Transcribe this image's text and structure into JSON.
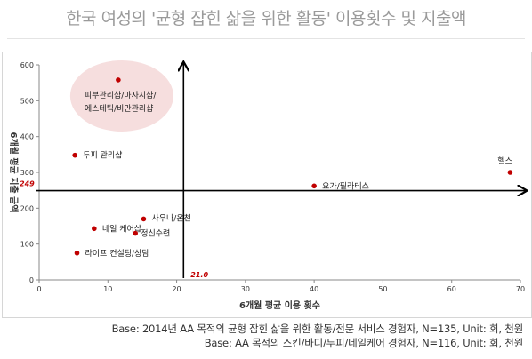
{
  "title": "한국 여성의 '균형 잡힌 삶을 위한 활동' 이용횟수 및 지출액",
  "notes": [
    "Base: 2014년 AA 목적의 균형 잡힌 삶을 위한 활동/전문 서비스 경험자, N=135, Unit: 회, 천원",
    "Base: AA 목적의 스킨/바디/두피/네일케어 경험자, N=116, Unit: 회, 천원"
  ],
  "chart_data": {
    "type": "scatter",
    "xlabel": "6개월 평균 이용 횟수",
    "ylabel": "6개월 평균 지출 금액",
    "xlim": [
      0,
      70
    ],
    "ylim": [
      0,
      600
    ],
    "xticks": [
      0,
      10,
      20,
      30,
      40,
      50,
      60,
      70
    ],
    "yticks": [
      0,
      100,
      200,
      300,
      400,
      500,
      600
    ],
    "grid": false,
    "reference_lines": {
      "x": 21.0,
      "x_label": "21.0",
      "y": 249,
      "y_label": "249"
    },
    "points": [
      {
        "label": "피부관리샵/마사지샵/\n에스테틱/비만관리샵",
        "x": 11.5,
        "y": 558,
        "highlighted": true
      },
      {
        "label": "두피 관리샵",
        "x": 5.2,
        "y": 348
      },
      {
        "label": "사우나/온천",
        "x": 15.2,
        "y": 170
      },
      {
        "label": "네일 케어샵",
        "x": 8.0,
        "y": 143
      },
      {
        "label": "정신수련",
        "x": 14.0,
        "y": 130
      },
      {
        "label": "라이프 컨설팅/상담",
        "x": 5.5,
        "y": 75
      },
      {
        "label": "요가/필라테스",
        "x": 40.0,
        "y": 262
      },
      {
        "label": "헬스",
        "x": 68.5,
        "y": 300
      }
    ],
    "colors": {
      "marker": "#c00000",
      "highlight": "#f6dede",
      "axis": "#000000",
      "ref_label": "#c00000"
    }
  }
}
